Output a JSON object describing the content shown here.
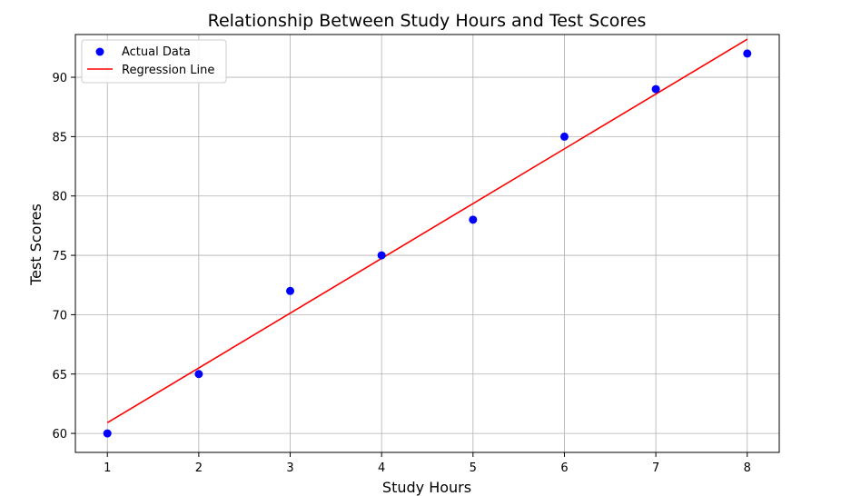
{
  "chart_data": {
    "type": "scatter",
    "title": "Relationship Between Study Hours and Test Scores",
    "xlabel": "Study Hours",
    "ylabel": "Test Scores",
    "xlim": [
      0.65,
      8.35
    ],
    "ylim": [
      58.4,
      93.6
    ],
    "xticks": [
      1,
      2,
      3,
      4,
      5,
      6,
      7,
      8
    ],
    "yticks": [
      60,
      65,
      70,
      75,
      80,
      85,
      90
    ],
    "grid": true,
    "legend_position": "top-left",
    "series": [
      {
        "name": "Actual Data",
        "kind": "scatter",
        "color": "#0000ff",
        "x": [
          1,
          2,
          3,
          4,
          5,
          6,
          7,
          8
        ],
        "y": [
          60,
          65,
          72,
          75,
          78,
          85,
          89,
          92
        ]
      },
      {
        "name": "Regression Line",
        "kind": "line",
        "color": "#ff0000",
        "x": [
          1,
          8
        ],
        "y": [
          60.9,
          93.2
        ]
      }
    ]
  }
}
